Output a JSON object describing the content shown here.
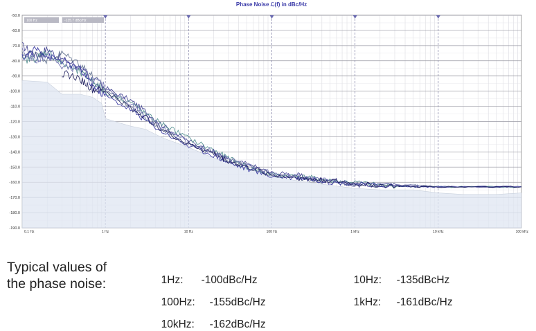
{
  "chart_data": {
    "type": "line",
    "title": "Phase Noise ℒ(f) in dBc/Hz",
    "x_scale": "log",
    "xlim": [
      0.1,
      100000
    ],
    "ylim": [
      -190,
      -50
    ],
    "y_ticks": [
      "-50.0",
      "-60.0",
      "-70.0",
      "-80.0",
      "-90.0",
      "-100.0",
      "-110.0",
      "-120.0",
      "-130.0",
      "-140.0",
      "-150.0",
      "-160.0",
      "-170.0",
      "-180.0",
      "-190.0"
    ],
    "y_tick_values": [
      -50,
      -60,
      -70,
      -80,
      -90,
      -100,
      -110,
      -120,
      -130,
      -140,
      -150,
      -160,
      -170,
      -180,
      -190
    ],
    "x_ticks": [
      "0.1 Hz",
      "1 Hz",
      "10 Hz",
      "100 Hz",
      "1 kHz",
      "10 kHz",
      "100 kHz"
    ],
    "x_tick_values": [
      0.1,
      1,
      10,
      100,
      1000,
      10000,
      100000
    ],
    "grid": true,
    "cursor": {
      "freq_label": "100 Hz",
      "value_label": "-135.7 dBc/Hz"
    },
    "noise_floor": {
      "x": [
        0.1,
        0.2,
        0.3,
        0.5,
        0.7,
        0.9,
        1,
        1.5,
        2,
        3,
        5,
        10,
        20,
        50,
        100,
        200,
        500,
        1000,
        2000,
        5000,
        10000,
        20000,
        50000,
        100000
      ],
      "y": [
        -93,
        -94,
        -102,
        -102,
        -104,
        -108,
        -118,
        -121,
        -123,
        -125,
        -131,
        -137,
        -144,
        -151,
        -156,
        -159,
        -162,
        -164,
        -165,
        -165,
        -167,
        -168,
        -168,
        -167
      ]
    },
    "series": [
      {
        "x": [
          0.1,
          0.15,
          0.2,
          0.3,
          0.5,
          0.7,
          1,
          2,
          3,
          5,
          10,
          20,
          30,
          50,
          100,
          200,
          300,
          500,
          1000,
          2000,
          5000,
          10000,
          30000,
          100000
        ],
        "y": [
          -70,
          -77,
          -72,
          -79,
          -84,
          -95,
          -98,
          -106,
          -113,
          -123,
          -133,
          -140,
          -145,
          -148,
          -154,
          -155,
          -158,
          -158,
          -162,
          -162,
          -162,
          -163,
          -163,
          -163
        ],
        "color": "#3a3a8c"
      },
      {
        "x": [
          0.1,
          0.15,
          0.2,
          0.3,
          0.5,
          0.7,
          1,
          2,
          3,
          5,
          10,
          20,
          30,
          50,
          100,
          200,
          300,
          500,
          1000,
          2000,
          5000,
          10000,
          30000,
          100000
        ],
        "y": [
          -76,
          -74,
          -80,
          -75,
          -82,
          -90,
          -99,
          -110,
          -118,
          -125,
          -135,
          -141,
          -146,
          -149,
          -155,
          -157,
          -158,
          -160,
          -161,
          -162,
          -162,
          -163,
          -163,
          -163
        ],
        "color": "#5a6a8a"
      },
      {
        "x": [
          0.1,
          0.15,
          0.2,
          0.3,
          0.5,
          0.7,
          1,
          2,
          3,
          5,
          10,
          20,
          30,
          50,
          100,
          200,
          300,
          500,
          1000,
          2000,
          5000,
          10000,
          30000,
          100000
        ],
        "y": [
          -80,
          -78,
          -74,
          -82,
          -88,
          -93,
          -101,
          -107,
          -115,
          -122,
          -131,
          -139,
          -144,
          -150,
          -155,
          -156,
          -157,
          -159,
          -160,
          -162,
          -163,
          -163,
          -163,
          -163
        ],
        "color": "#4b8a8a"
      },
      {
        "x": [
          0.1,
          0.15,
          0.2,
          0.3,
          0.5,
          0.7,
          1,
          2,
          3,
          5,
          10,
          20,
          30,
          50,
          100,
          200,
          300,
          500,
          1000,
          2000,
          5000,
          10000,
          30000,
          100000
        ],
        "y": [
          -78,
          -72,
          -77,
          -80,
          -86,
          -97,
          -103,
          -112,
          -119,
          -127,
          -136,
          -142,
          -147,
          -151,
          -156,
          -157,
          -158,
          -160,
          -161,
          -162,
          -163,
          -163,
          -163,
          -163
        ],
        "color": "#2a2a9a"
      },
      {
        "x": [
          0.1,
          0.15,
          0.2,
          0.3,
          0.5,
          0.7,
          1,
          2,
          3,
          5,
          10,
          20,
          30,
          50,
          100,
          200,
          300,
          500,
          1000,
          2000,
          5000,
          10000,
          30000,
          100000
        ],
        "y": [
          -74,
          -80,
          -76,
          -84,
          -85,
          -92,
          -97,
          -108,
          -116,
          -124,
          -134,
          -140,
          -145,
          -149,
          -154,
          -156,
          -158,
          -159,
          -161,
          -162,
          -162,
          -163,
          -163,
          -163
        ],
        "color": "#6a6ab0"
      },
      {
        "x": [
          0.3,
          0.5,
          0.7,
          1,
          2,
          3,
          5,
          10,
          20,
          30,
          50,
          100,
          200,
          300,
          500,
          1000,
          2000,
          5000,
          10000,
          30000,
          100000
        ],
        "y": [
          -88,
          -92,
          -99,
          -100,
          -111,
          -117,
          -126,
          -135,
          -141,
          -146,
          -150,
          -155,
          -157,
          -158,
          -159,
          -161,
          -162,
          -163,
          -163,
          -163,
          -163
        ],
        "color": "#1a1a5a"
      }
    ]
  },
  "caption": {
    "heading_line1": "Typical values of",
    "heading_line2": "the phase noise:",
    "values": [
      {
        "label": "1Hz:",
        "value": "-100dBc/Hz"
      },
      {
        "label": "10Hz:",
        "value": "-135dBcHz"
      },
      {
        "label": "100Hz:",
        "value": "-155dBc/Hz"
      },
      {
        "label": "1kHz:",
        "value": "-161dBc/Hz"
      },
      {
        "label": "10kHz:",
        "value": "-162dBc/Hz"
      }
    ]
  }
}
